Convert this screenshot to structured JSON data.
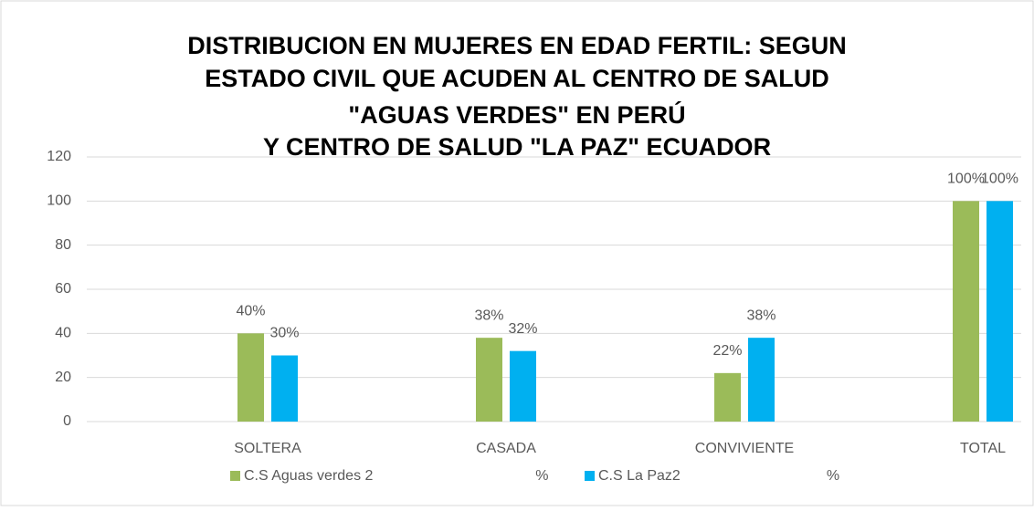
{
  "chart_data": {
    "type": "bar",
    "title": [
      "DISTRIBUCION EN MUJERES EN EDAD FERTIL: SEGUN",
      "ESTADO CIVIL QUE ACUDEN AL CENTRO DE SALUD",
      "\"AGUAS VERDES\" EN PERÚ",
      "Y CENTRO DE SALUD \"LA PAZ\" ECUADOR"
    ],
    "categories": [
      "SOLTERA",
      "CASADA",
      "CONVIVIENTE",
      "TOTAL"
    ],
    "series": [
      {
        "name": "C.S Aguas verdes 2                                        %",
        "color": "#9bbb59",
        "values": [
          40,
          38,
          22,
          100
        ],
        "value_labels": [
          "40%",
          "38%",
          "22%",
          "100%"
        ]
      },
      {
        "name": "C.S La Paz2                                    %",
        "color": "#00b0f0",
        "values": [
          30,
          32,
          38,
          100
        ],
        "value_labels": [
          "30%",
          "32%",
          "38%",
          "100%"
        ]
      }
    ],
    "ylim": [
      0,
      120
    ],
    "yticks": [
      0,
      20,
      40,
      60,
      80,
      100,
      120
    ],
    "grid": true,
    "legend": "bottom"
  }
}
